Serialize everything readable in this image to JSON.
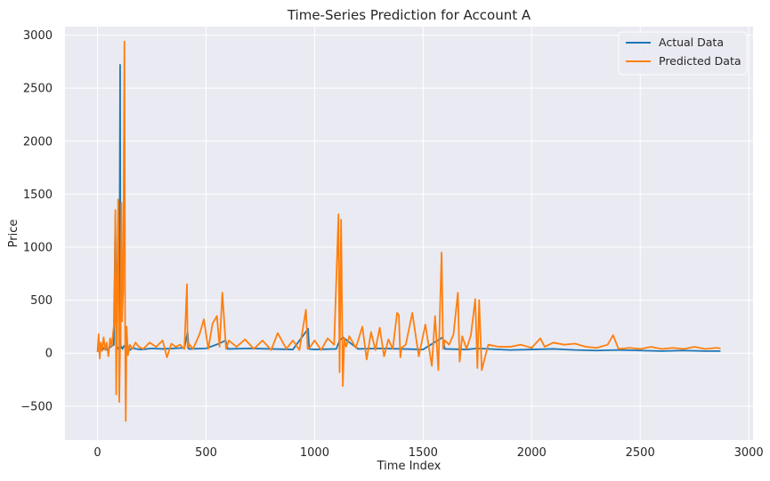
{
  "chart_data": {
    "type": "line",
    "title": "Time-Series Prediction for Account A",
    "xlabel": "Time Index",
    "ylabel": "Price",
    "xlim": [
      -150,
      3020
    ],
    "ylim": [
      -820,
      3080
    ],
    "x_ticks": [
      0,
      500,
      1000,
      1500,
      2000,
      2500,
      3000
    ],
    "x_tick_labels": [
      "0",
      "500",
      "1000",
      "1500",
      "2000",
      "2500",
      "3000"
    ],
    "y_ticks": [
      -500,
      0,
      500,
      1000,
      1500,
      2000,
      2500,
      3000
    ],
    "y_tick_labels": [
      "−500",
      "0",
      "500",
      "1000",
      "1500",
      "2000",
      "2500",
      "3000"
    ],
    "grid": true,
    "background": "#eaeaf2",
    "legend_position": "top-right",
    "series": [
      {
        "name": "Actual Data",
        "color": "#1f77b4",
        "x": [
          0,
          10,
          20,
          30,
          45,
          60,
          75,
          82,
          88,
          95,
          100,
          104,
          106,
          110,
          115,
          122,
          130,
          140,
          150,
          160,
          180,
          200,
          250,
          300,
          400,
          415,
          420,
          500,
          560,
          590,
          600,
          700,
          800,
          900,
          970,
          975,
          1000,
          1100,
          1115,
          1130,
          1200,
          1300,
          1400,
          1500,
          1590,
          1600,
          1700,
          1750,
          1800,
          1900,
          2000,
          2100,
          2200,
          2300,
          2400,
          2500,
          2600,
          2700,
          2800,
          2870
        ],
        "values": [
          20,
          40,
          25,
          50,
          30,
          60,
          80,
          1270,
          60,
          40,
          70,
          2720,
          50,
          60,
          40,
          70,
          50,
          60,
          30,
          50,
          40,
          35,
          45,
          40,
          50,
          200,
          40,
          45,
          90,
          120,
          40,
          45,
          40,
          35,
          230,
          40,
          35,
          40,
          120,
          150,
          40,
          45,
          40,
          35,
          150,
          40,
          35,
          45,
          40,
          30,
          35,
          40,
          30,
          25,
          30,
          25,
          20,
          25,
          20,
          20
        ]
      },
      {
        "name": "Predicted Data",
        "color": "#ff7f0e",
        "x": [
          0,
          5,
          10,
          15,
          20,
          28,
          35,
          42,
          50,
          58,
          65,
          72,
          78,
          82,
          86,
          90,
          95,
          100,
          105,
          110,
          113,
          118,
          124,
          127,
          130,
          134,
          140,
          148,
          160,
          175,
          190,
          210,
          240,
          270,
          300,
          320,
          340,
          360,
          380,
          400,
          412,
          415,
          420,
          440,
          470,
          490,
          510,
          530,
          550,
          562,
          575,
          592,
          605,
          640,
          680,
          720,
          760,
          800,
          830,
          870,
          900,
          930,
          960,
          968,
          980,
          1000,
          1030,
          1060,
          1090,
          1110,
          1115,
          1122,
          1130,
          1137,
          1145,
          1160,
          1190,
          1220,
          1240,
          1260,
          1280,
          1300,
          1320,
          1340,
          1360,
          1380,
          1388,
          1395,
          1400,
          1420,
          1450,
          1480,
          1510,
          1540,
          1555,
          1570,
          1585,
          1592,
          1600,
          1620,
          1640,
          1660,
          1668,
          1680,
          1700,
          1720,
          1740,
          1750,
          1758,
          1770,
          1800,
          1850,
          1900,
          1950,
          2000,
          2040,
          2060,
          2100,
          2150,
          2200,
          2250,
          2300,
          2350,
          2375,
          2400,
          2450,
          2500,
          2550,
          2600,
          2650,
          2700,
          2750,
          2800,
          2850,
          2870
        ],
        "values": [
          10,
          180,
          -50,
          100,
          20,
          150,
          30,
          100,
          -30,
          140,
          60,
          200,
          300,
          1350,
          -390,
          500,
          1450,
          -460,
          200,
          1420,
          300,
          600,
          2940,
          200,
          -640,
          250,
          -20,
          80,
          40,
          100,
          60,
          40,
          100,
          60,
          120,
          -40,
          90,
          60,
          80,
          40,
          650,
          50,
          90,
          40,
          180,
          320,
          40,
          280,
          350,
          60,
          570,
          40,
          120,
          60,
          130,
          40,
          120,
          30,
          190,
          40,
          120,
          30,
          410,
          40,
          60,
          120,
          30,
          140,
          80,
          1310,
          -180,
          1260,
          -310,
          140,
          60,
          160,
          50,
          250,
          -60,
          200,
          30,
          240,
          -30,
          130,
          40,
          380,
          360,
          -40,
          50,
          80,
          380,
          -30,
          270,
          -120,
          350,
          -160,
          950,
          40,
          120,
          80,
          180,
          570,
          -80,
          160,
          40,
          170,
          510,
          -140,
          500,
          -160,
          80,
          60,
          60,
          80,
          50,
          140,
          60,
          100,
          80,
          90,
          60,
          50,
          80,
          170,
          40,
          50,
          40,
          60,
          40,
          50,
          40,
          60,
          40,
          50,
          45
        ]
      }
    ]
  }
}
